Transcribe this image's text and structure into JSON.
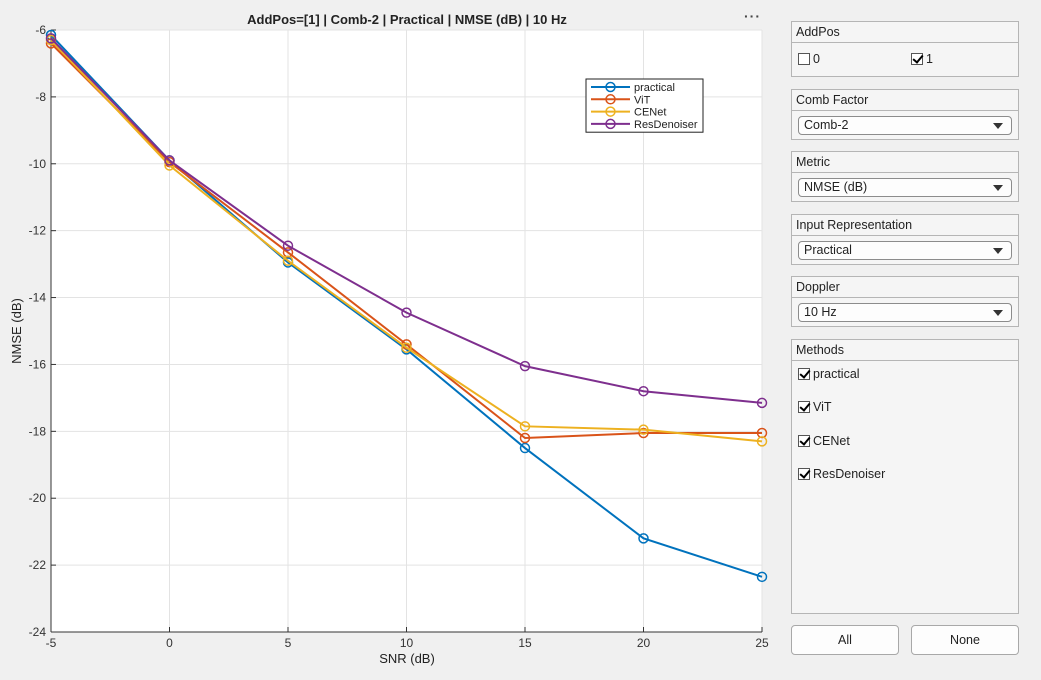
{
  "chart_data": {
    "type": "line",
    "title": "AddPos=[1] | Comb-2 | Practical | NMSE (dB) | 10 Hz",
    "xlabel": "SNR (dB)",
    "ylabel": "NMSE (dB)",
    "xlim": [
      -5,
      25
    ],
    "ylim": [
      -24,
      -6
    ],
    "xticks": [
      -5,
      0,
      5,
      10,
      15,
      20,
      25
    ],
    "yticks": [
      -24,
      -22,
      -20,
      -18,
      -16,
      -14,
      -12,
      -10,
      -8,
      -6
    ],
    "grid": true,
    "legend_position": "top-right",
    "x": [
      -5,
      0,
      5,
      10,
      15,
      20,
      25
    ],
    "series": [
      {
        "name": "practical",
        "color": "#0072BD",
        "values": [
          -6.15,
          -9.9,
          -12.95,
          -15.55,
          -18.5,
          -21.2,
          -22.35
        ]
      },
      {
        "name": "ViT",
        "color": "#D95319",
        "values": [
          -6.4,
          -9.95,
          -12.65,
          -15.4,
          -18.2,
          -18.05,
          -18.05
        ]
      },
      {
        "name": "CENet",
        "color": "#EDB120",
        "values": [
          -6.3,
          -10.05,
          -12.9,
          -15.5,
          -17.85,
          -17.95,
          -18.3
        ]
      },
      {
        "name": "ResDenoiser",
        "color": "#7E2F8E",
        "values": [
          -6.25,
          -9.9,
          -12.45,
          -14.45,
          -16.05,
          -16.8,
          -17.15
        ]
      }
    ]
  },
  "toolbar": {
    "more_label": "···"
  },
  "controls": {
    "addpos": {
      "title": "AddPos",
      "options": [
        {
          "label": "0",
          "checked": false
        },
        {
          "label": "1",
          "checked": true
        }
      ]
    },
    "comb_factor": {
      "title": "Comb Factor",
      "value": "Comb-2"
    },
    "metric": {
      "title": "Metric",
      "value": "NMSE (dB)"
    },
    "input_repr": {
      "title": "Input Representation",
      "value": "Practical"
    },
    "doppler": {
      "title": "Doppler",
      "value": "10 Hz"
    },
    "methods": {
      "title": "Methods",
      "items": [
        {
          "label": "practical",
          "checked": true
        },
        {
          "label": "ViT",
          "checked": true
        },
        {
          "label": "CENet",
          "checked": true
        },
        {
          "label": "ResDenoiser",
          "checked": true
        }
      ]
    },
    "all_label": "All",
    "none_label": "None"
  }
}
